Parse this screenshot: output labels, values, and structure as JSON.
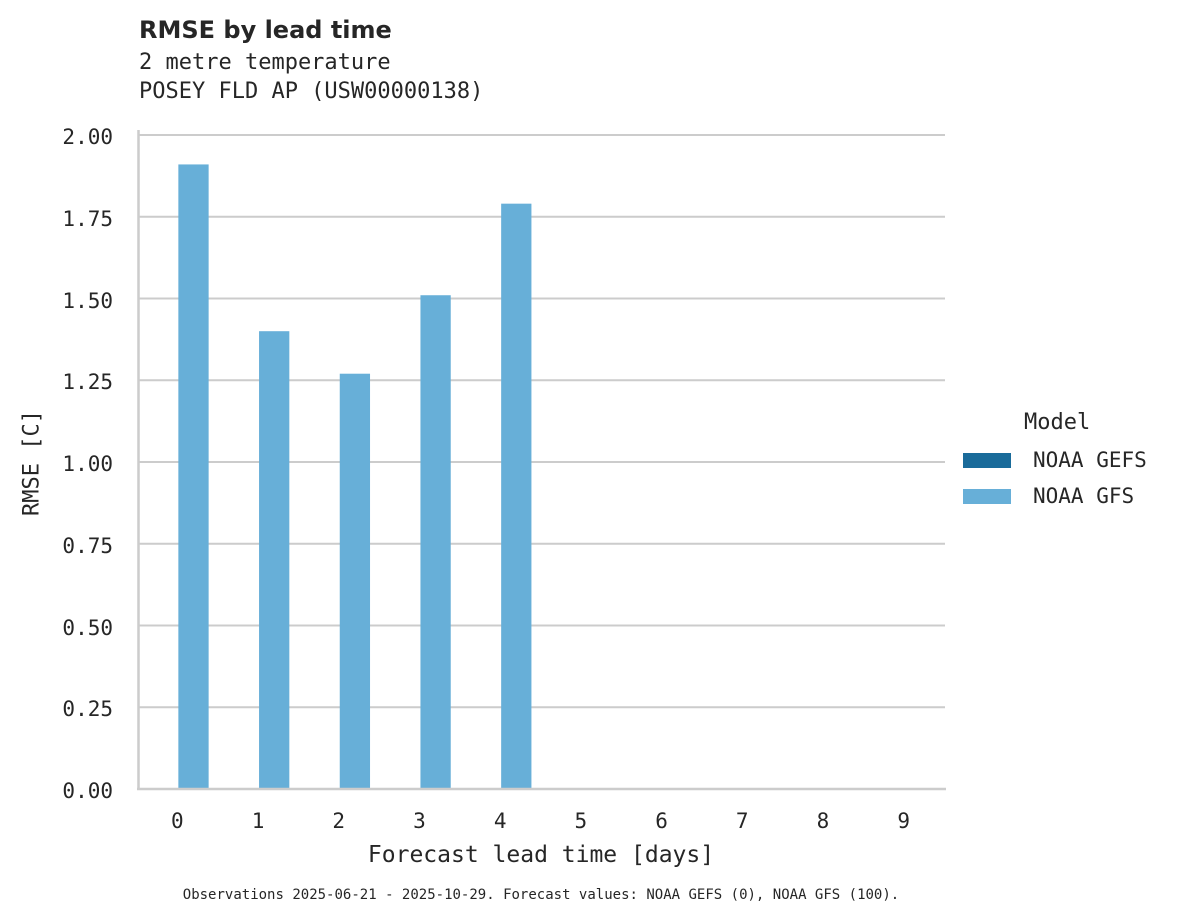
{
  "header": {
    "title": "RMSE by lead time",
    "subtitle_line1": "2 metre temperature",
    "subtitle_line2": "POSEY FLD AP (USW00000138)"
  },
  "axes": {
    "ylabel": "RMSE [C]",
    "xlabel": "Forecast lead time [days]",
    "yticks": [
      "0.00",
      "0.25",
      "0.50",
      "0.75",
      "1.00",
      "1.25",
      "1.50",
      "1.75",
      "2.00"
    ],
    "xticks": [
      "0",
      "1",
      "2",
      "3",
      "4",
      "5",
      "6",
      "7",
      "8",
      "9"
    ]
  },
  "legend": {
    "title": "Model",
    "items": [
      {
        "label": "NOAA GEFS",
        "color": "#1a6b9a"
      },
      {
        "label": "NOAA GFS",
        "color": "#67afd8"
      }
    ]
  },
  "footnote": "Observations 2025-06-21 - 2025-10-29. Forecast values: NOAA GEFS (0), NOAA GFS (100).",
  "colors": {
    "grid": "#cccccc",
    "axis": "#cccccc",
    "gefs": "#1a6b9a",
    "gfs": "#67afd8"
  },
  "chart_data": {
    "type": "bar",
    "title": "RMSE by lead time",
    "subtitle": "2 metre temperature / POSEY FLD AP (USW00000138)",
    "xlabel": "Forecast lead time [days]",
    "ylabel": "RMSE [C]",
    "categories": [
      "0",
      "1",
      "2",
      "3",
      "4",
      "5",
      "6",
      "7",
      "8",
      "9"
    ],
    "series": [
      {
        "name": "NOAA GEFS",
        "color": "#1a6b9a",
        "values": [
          null,
          null,
          null,
          null,
          null,
          null,
          null,
          null,
          null,
          null
        ]
      },
      {
        "name": "NOAA GFS",
        "color": "#67afd8",
        "values": [
          1.91,
          1.4,
          1.27,
          1.51,
          1.79,
          null,
          null,
          null,
          null,
          null
        ]
      }
    ],
    "ylim": [
      0,
      2.0
    ],
    "yticks": [
      0,
      0.25,
      0.5,
      0.75,
      1.0,
      1.25,
      1.5,
      1.75,
      2.0
    ],
    "grid": "horizontal",
    "legend_position": "right",
    "legend_title": "Model"
  }
}
